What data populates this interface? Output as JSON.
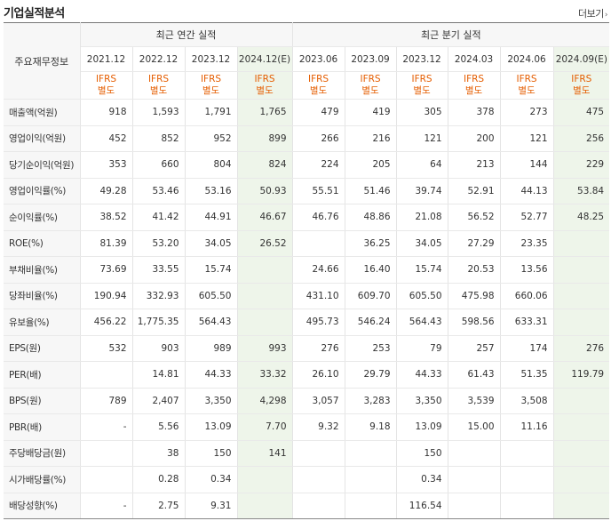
{
  "header": {
    "title": "기업실적분석",
    "more_label": "더보기",
    "more_chevron": "›"
  },
  "table": {
    "corner_label": "주요재무정보",
    "groups": {
      "annual": "최근 연간 실적",
      "quarterly": "최근 분기 실적"
    },
    "periods": [
      "2021.12",
      "2022.12",
      "2023.12",
      "2024.12(E)",
      "2023.06",
      "2023.09",
      "2023.12",
      "2024.03",
      "2024.06",
      "2024.09(E)"
    ],
    "estimate_columns": [
      3,
      9
    ],
    "ifrs_line1": "IFRS",
    "ifrs_line2": "별도",
    "rows": [
      {
        "label": "매출액(억원)",
        "values": [
          "918",
          "1,593",
          "1,791",
          "1,765",
          "479",
          "419",
          "305",
          "378",
          "273",
          "475"
        ]
      },
      {
        "label": "영업이익(억원)",
        "values": [
          "452",
          "852",
          "952",
          "899",
          "266",
          "216",
          "121",
          "200",
          "121",
          "256"
        ]
      },
      {
        "label": "당기순이익(억원)",
        "values": [
          "353",
          "660",
          "804",
          "824",
          "224",
          "205",
          "64",
          "213",
          "144",
          "229"
        ]
      },
      {
        "label": "영업이익률(%)",
        "values": [
          "49.28",
          "53.46",
          "53.16",
          "50.93",
          "55.51",
          "51.46",
          "39.74",
          "52.91",
          "44.13",
          "53.84"
        ]
      },
      {
        "label": "순이익률(%)",
        "values": [
          "38.52",
          "41.42",
          "44.91",
          "46.67",
          "46.76",
          "48.86",
          "21.08",
          "56.52",
          "52.77",
          "48.25"
        ]
      },
      {
        "label": "ROE(%)",
        "values": [
          "81.39",
          "53.20",
          "34.05",
          "26.52",
          "",
          "36.25",
          "34.05",
          "27.29",
          "23.35",
          ""
        ]
      },
      {
        "label": "부채비율(%)",
        "values": [
          "73.69",
          "33.55",
          "15.74",
          "",
          "24.66",
          "16.40",
          "15.74",
          "20.53",
          "13.56",
          ""
        ]
      },
      {
        "label": "당좌비율(%)",
        "values": [
          "190.94",
          "332.93",
          "605.50",
          "",
          "431.10",
          "609.70",
          "605.50",
          "475.98",
          "660.06",
          ""
        ]
      },
      {
        "label": "유보율(%)",
        "values": [
          "456.22",
          "1,775.35",
          "564.43",
          "",
          "495.73",
          "546.24",
          "564.43",
          "598.56",
          "633.31",
          ""
        ]
      },
      {
        "label": "EPS(원)",
        "values": [
          "532",
          "903",
          "989",
          "993",
          "276",
          "253",
          "79",
          "257",
          "174",
          "276"
        ]
      },
      {
        "label": "PER(배)",
        "values": [
          "",
          "14.81",
          "44.33",
          "33.32",
          "26.10",
          "29.79",
          "44.33",
          "61.43",
          "51.35",
          "119.79"
        ]
      },
      {
        "label": "BPS(원)",
        "values": [
          "789",
          "2,407",
          "3,350",
          "4,298",
          "3,057",
          "3,283",
          "3,350",
          "3,539",
          "3,508",
          ""
        ]
      },
      {
        "label": "PBR(배)",
        "values": [
          "-",
          "5.56",
          "13.09",
          "7.70",
          "9.32",
          "9.18",
          "13.09",
          "15.00",
          "11.16",
          ""
        ]
      },
      {
        "label": "주당배당금(원)",
        "values": [
          "",
          "38",
          "150",
          "141",
          "",
          "",
          "150",
          "",
          "",
          ""
        ]
      },
      {
        "label": "시가배당률(%)",
        "values": [
          "",
          "0.28",
          "0.34",
          "",
          "",
          "",
          "0.34",
          "",
          "",
          ""
        ]
      },
      {
        "label": "배당성향(%)",
        "values": [
          "-",
          "2.75",
          "9.31",
          "",
          "",
          "",
          "116.54",
          "",
          "",
          ""
        ]
      }
    ],
    "group_start_rows": [
      3,
      6,
      9,
      13
    ]
  },
  "colors": {
    "ifrs_text": "#e55d00",
    "estimate_bg": "#eef5ea",
    "header_bg": "#f7f7f7"
  }
}
